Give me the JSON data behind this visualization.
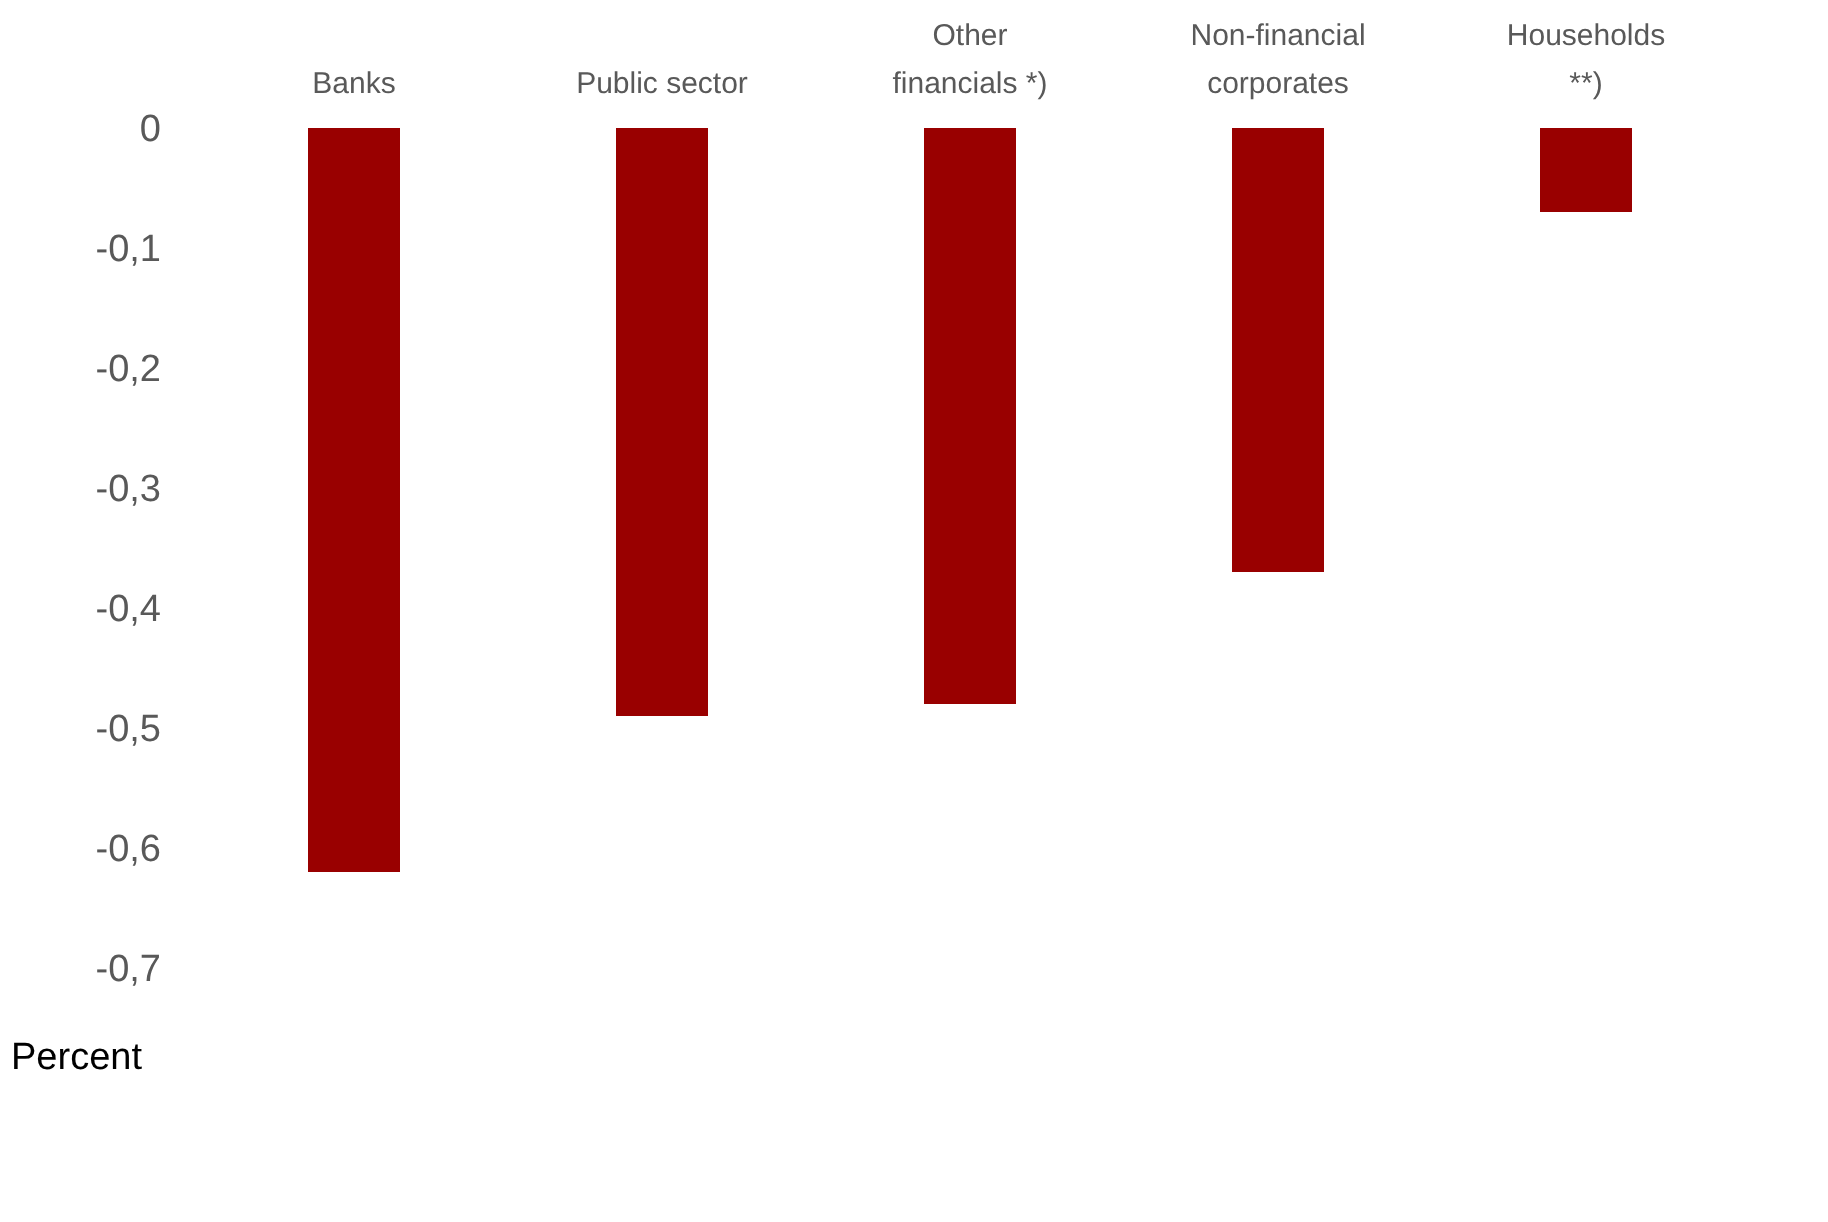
{
  "chart_data": {
    "type": "bar",
    "ylabel": "Percent",
    "categories": [
      "Banks",
      "Public sector",
      "Other\nfinancials *)",
      "Non-financial\ncorporates",
      "Households\n**)"
    ],
    "values": [
      -0.62,
      -0.49,
      -0.48,
      -0.37,
      -0.07
    ],
    "color": "#990000",
    "ylim": [
      -0.7,
      0
    ],
    "yticks": [
      {
        "value": 0,
        "label": "0"
      },
      {
        "value": -0.1,
        "label": "-0,1"
      },
      {
        "value": -0.2,
        "label": "-0,2"
      },
      {
        "value": -0.3,
        "label": "-0,3"
      },
      {
        "value": -0.4,
        "label": "-0,4"
      },
      {
        "value": -0.5,
        "label": "-0,5"
      },
      {
        "value": -0.6,
        "label": "-0,6"
      },
      {
        "value": -0.7,
        "label": "-0,7"
      }
    ],
    "grid": false
  }
}
